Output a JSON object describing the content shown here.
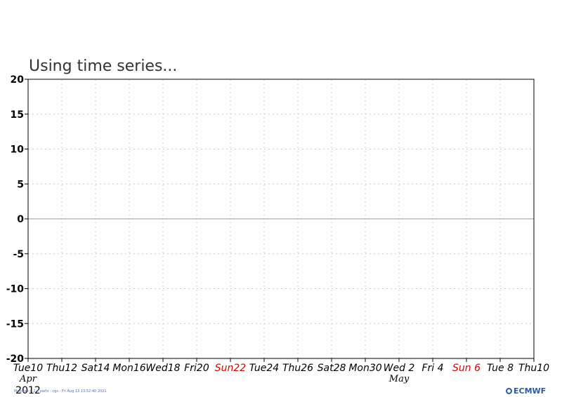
{
  "chart_data": {
    "type": "line",
    "title": "Using time series...",
    "ylim": [
      -20,
      20
    ],
    "yticks": [
      20,
      15,
      10,
      5,
      0,
      -5,
      -10,
      -15,
      -20
    ],
    "xticks": [
      {
        "label": "Tue10",
        "weekend": false
      },
      {
        "label": "Thu12",
        "weekend": false
      },
      {
        "label": "Sat14",
        "weekend": false
      },
      {
        "label": "Mon16",
        "weekend": false
      },
      {
        "label": "Wed18",
        "weekend": false
      },
      {
        "label": "Fri20",
        "weekend": false
      },
      {
        "label": "Sun22",
        "weekend": true
      },
      {
        "label": "Tue24",
        "weekend": false
      },
      {
        "label": "Thu26",
        "weekend": false
      },
      {
        "label": "Sat28",
        "weekend": false
      },
      {
        "label": "Mon30",
        "weekend": false
      },
      {
        "label": "Wed 2",
        "weekend": false
      },
      {
        "label": "Fri 4",
        "weekend": false
      },
      {
        "label": "Sun 6",
        "weekend": true
      },
      {
        "label": "Tue 8",
        "weekend": false
      },
      {
        "label": "Thu10",
        "weekend": false
      }
    ],
    "month_labels": [
      {
        "label": "Apr",
        "tick_index": 0
      },
      {
        "label": "May",
        "tick_index": 11
      }
    ],
    "year_label": "2012",
    "grid": true,
    "series": [],
    "colors": {
      "weekday": "#000000",
      "sunday": "#e00000",
      "grid": "#cccccc",
      "zero_line": "#999999"
    }
  },
  "footer": {
    "credit": "Magics++ 2.x parts - cgs - Fri Aug 13 13:52:40 2021",
    "logo": "ECMWF"
  }
}
